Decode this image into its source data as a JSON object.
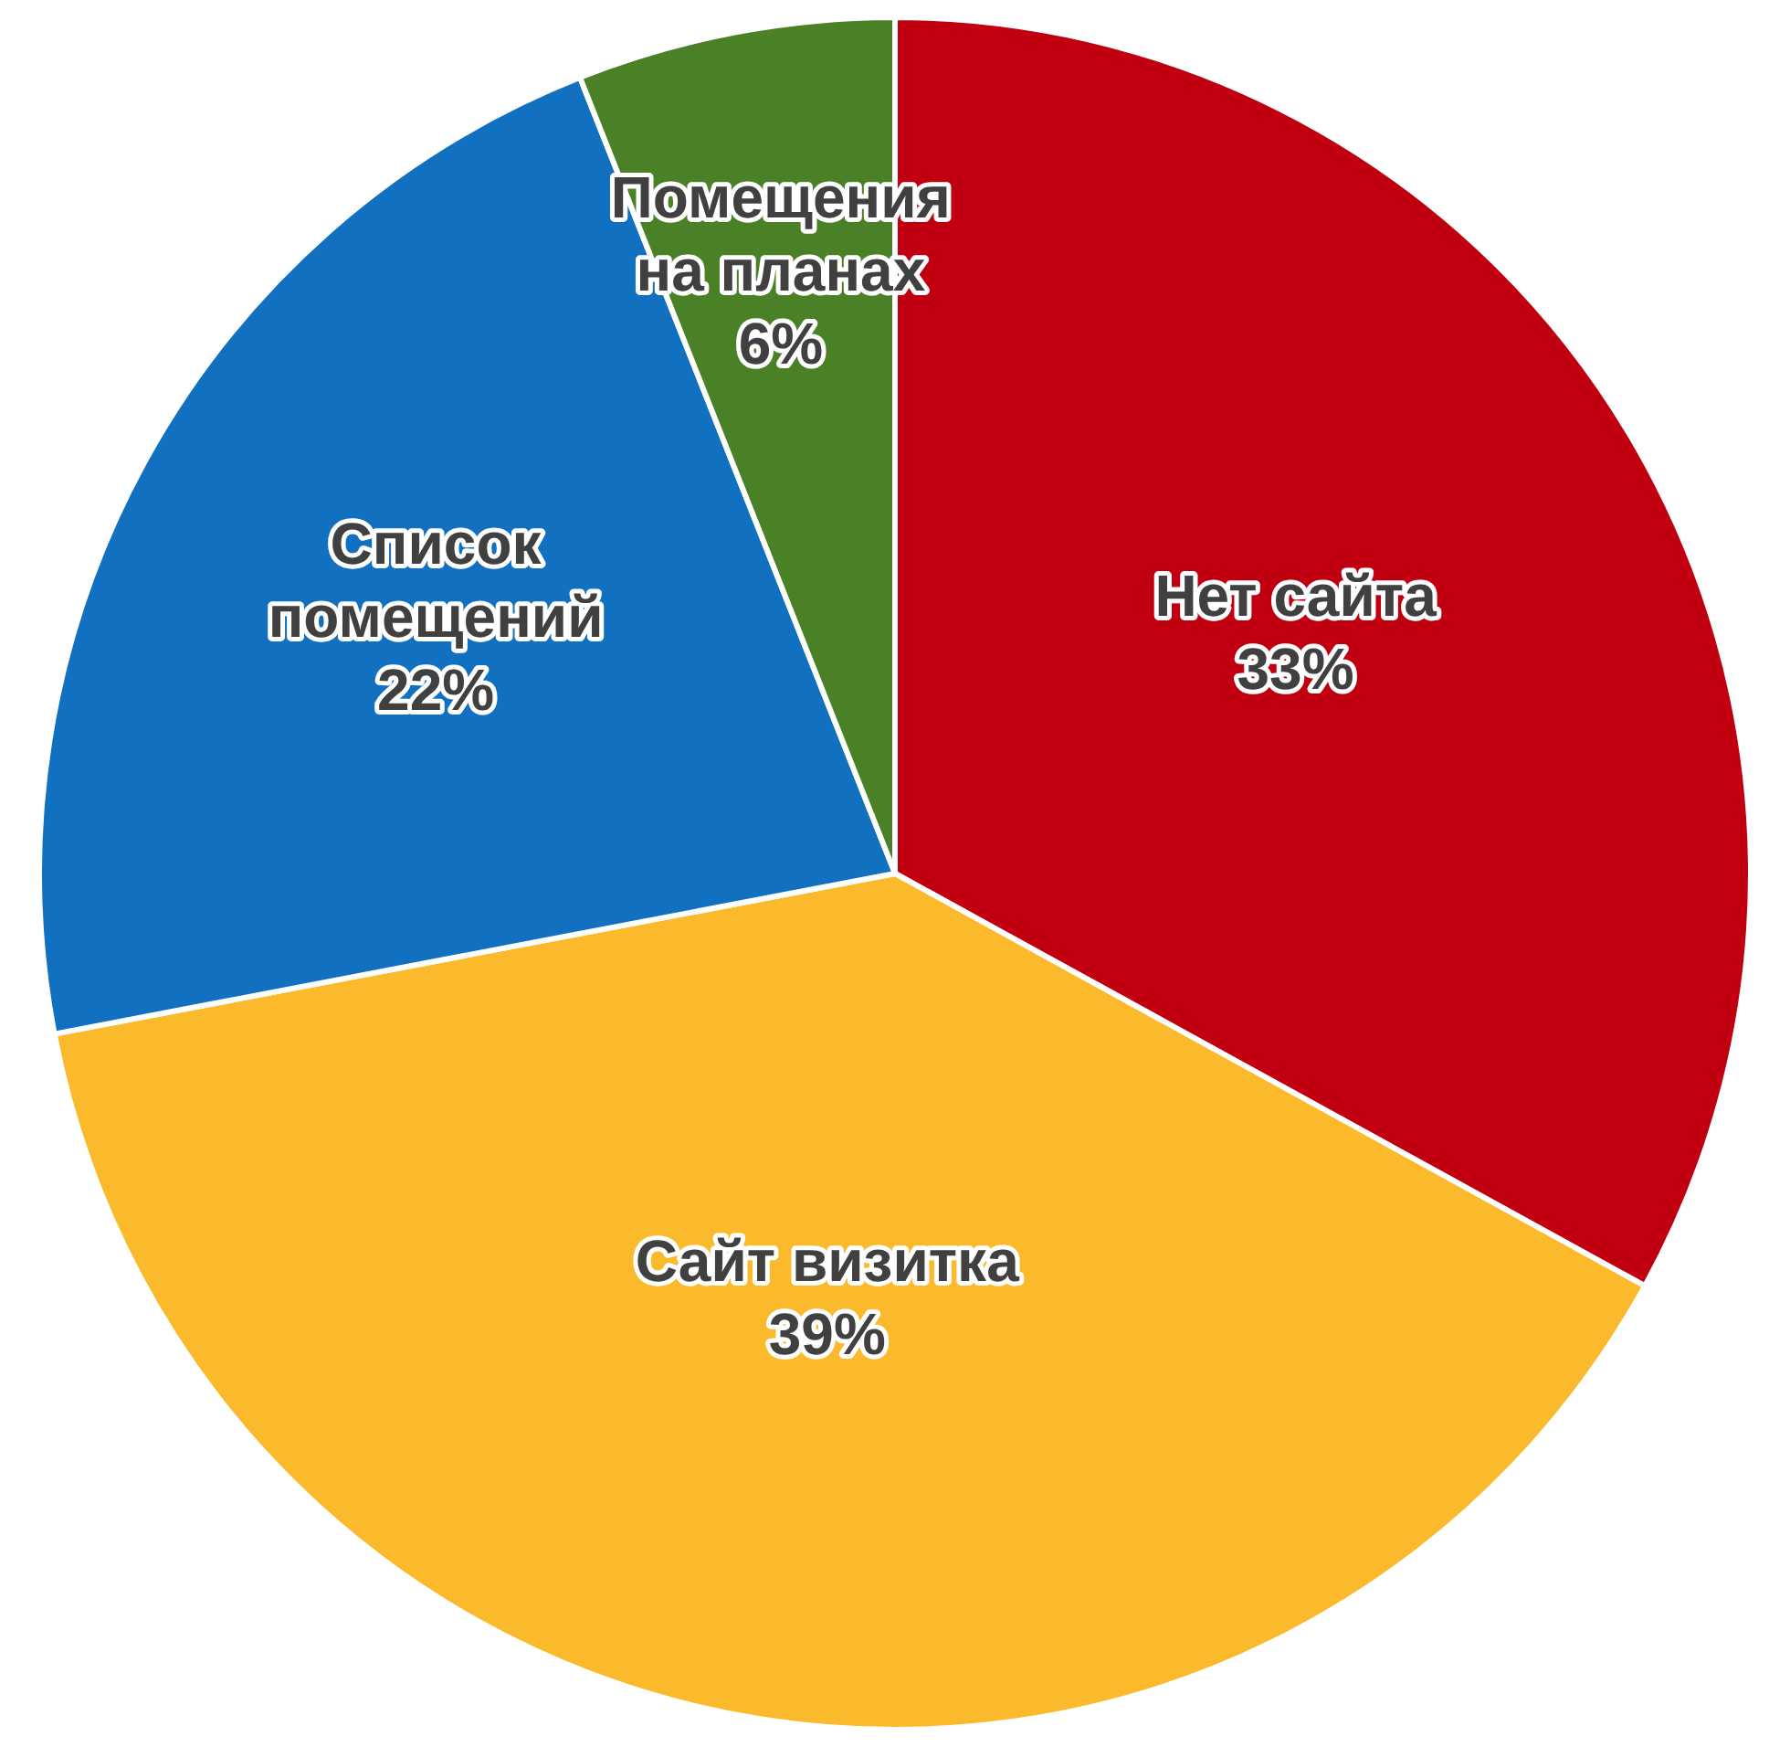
{
  "chart_data": {
    "type": "pie",
    "categories": [
      "Нет сайта",
      "Сайт визитка",
      "Список помещений",
      "Помещения на планах"
    ],
    "values": [
      33,
      39,
      22,
      6
    ],
    "value_labels": [
      "33%",
      "39%",
      "22%",
      "6%"
    ],
    "colors": [
      "#c00010",
      "#fbb92c",
      "#1170c0",
      "#4a8127"
    ],
    "legend": false
  }
}
